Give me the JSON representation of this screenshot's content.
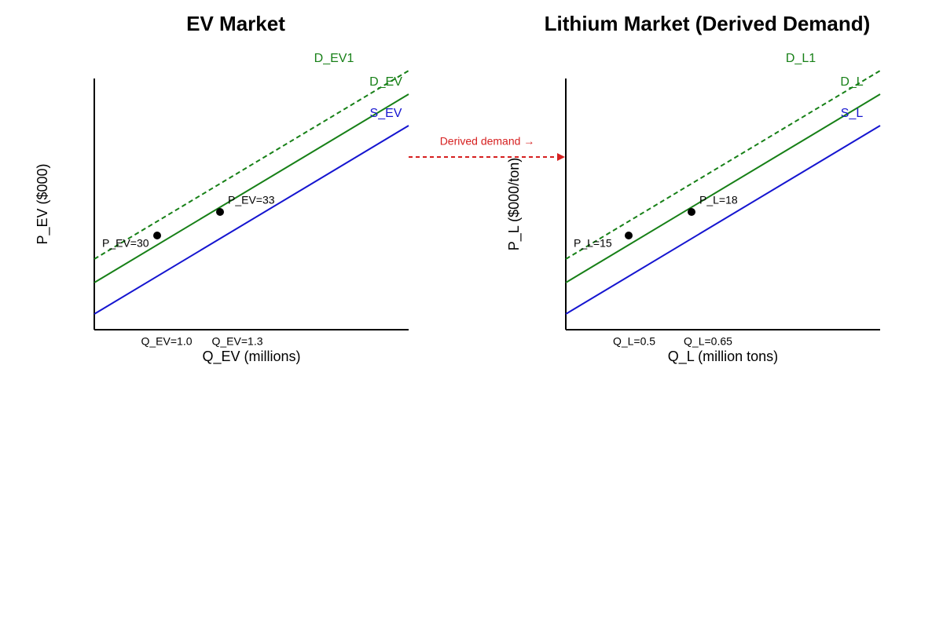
{
  "panels": [
    {
      "title": "EV Market",
      "y_label": "P_EV ($000)",
      "x_label": "Q_EV (millions)",
      "curves": {
        "shifted_demand": "D_EV1",
        "demand": "D_EV",
        "supply": "S_EV"
      },
      "points": [
        {
          "price": "P_EV=30",
          "quantity": "Q_EV=1.0"
        },
        {
          "price": "P_EV=33",
          "quantity": "Q_EV=1.3"
        }
      ]
    },
    {
      "title": "Lithium Market (Derived Demand)",
      "y_label": "P_L ($000/ton)",
      "x_label": "Q_L (million tons)",
      "curves": {
        "shifted_demand": "D_L1",
        "demand": "D_L",
        "supply": "S_L"
      },
      "points": [
        {
          "price": "P_L=15",
          "quantity": "Q_L=0.5"
        },
        {
          "price": "P_L=18",
          "quantity": "Q_L=0.65"
        }
      ]
    }
  ],
  "link": {
    "label": "Derived demand →"
  }
}
